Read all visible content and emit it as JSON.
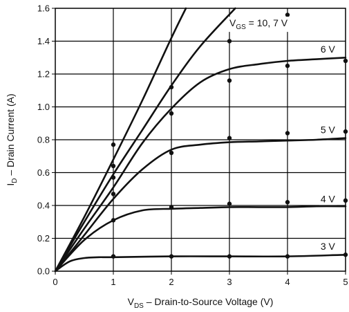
{
  "chart_data": {
    "type": "line",
    "title": "",
    "xlabel": {
      "main": "V",
      "sub": "DS",
      "rest": " – Drain-to-Source Voltage (V)"
    },
    "ylabel": {
      "main": "I",
      "sub": "D",
      "rest": " – Drain Current (A)"
    },
    "xlim": [
      0,
      5
    ],
    "ylim": [
      0,
      1.6
    ],
    "x_ticks": [
      "0",
      "1",
      "2",
      "3",
      "4",
      "5"
    ],
    "y_ticks": [
      "0.0",
      "0.2",
      "0.4",
      "0.6",
      "0.8",
      "1.0",
      "1.2",
      "1.4",
      "1.6"
    ],
    "grid": true,
    "series": [
      {
        "name": "VGS = 10 V",
        "x": [
          0,
          0.5,
          1,
          1.5,
          2,
          2.25
        ],
        "y": [
          0,
          0.33,
          0.68,
          1.04,
          1.42,
          1.6
        ]
      },
      {
        "name": "VGS = 7 V",
        "x": [
          0,
          0.5,
          1,
          1.5,
          2,
          2.5,
          3.1
        ],
        "y": [
          0,
          0.3,
          0.59,
          0.86,
          1.13,
          1.37,
          1.6
        ]
      },
      {
        "name": "VGS = 6 V",
        "x": [
          0,
          0.5,
          1,
          1.5,
          2,
          2.5,
          3,
          3.5,
          4,
          4.5,
          5
        ],
        "y": [
          0,
          0.26,
          0.51,
          0.78,
          0.99,
          1.15,
          1.23,
          1.26,
          1.28,
          1.29,
          1.3
        ]
      },
      {
        "name": "VGS = 5 V",
        "x": [
          0,
          0.5,
          1,
          1.5,
          2,
          2.5,
          3,
          3.5,
          4,
          4.5,
          5
        ],
        "y": [
          0,
          0.22,
          0.44,
          0.62,
          0.74,
          0.77,
          0.785,
          0.79,
          0.795,
          0.8,
          0.81
        ]
      },
      {
        "name": "VGS = 4 V",
        "x": [
          0,
          0.5,
          1,
          1.5,
          2,
          2.5,
          3,
          3.5,
          4,
          4.5,
          5
        ],
        "y": [
          0,
          0.19,
          0.31,
          0.37,
          0.38,
          0.385,
          0.39,
          0.39,
          0.39,
          0.395,
          0.395
        ]
      },
      {
        "name": "VGS = 3 V",
        "x": [
          0,
          0.25,
          0.5,
          0.75,
          1,
          2,
          3,
          4,
          5
        ],
        "y": [
          0,
          0.06,
          0.08,
          0.085,
          0.085,
          0.09,
          0.09,
          0.09,
          0.1
        ]
      }
    ],
    "points": [
      {
        "x": 1,
        "y": 0.77
      },
      {
        "x": 1,
        "y": 0.64
      },
      {
        "x": 1,
        "y": 0.57
      },
      {
        "x": 1,
        "y": 0.47
      },
      {
        "x": 1,
        "y": 0.31
      },
      {
        "x": 1,
        "y": 0.09
      },
      {
        "x": 2,
        "y": 1.12
      },
      {
        "x": 2,
        "y": 0.96
      },
      {
        "x": 2,
        "y": 0.72
      },
      {
        "x": 2,
        "y": 0.39
      },
      {
        "x": 2,
        "y": 0.09
      },
      {
        "x": 3,
        "y": 1.4
      },
      {
        "x": 3,
        "y": 1.16
      },
      {
        "x": 3,
        "y": 0.81
      },
      {
        "x": 3,
        "y": 0.41
      },
      {
        "x": 3,
        "y": 0.09
      },
      {
        "x": 4,
        "y": 1.56
      },
      {
        "x": 4,
        "y": 1.25
      },
      {
        "x": 4,
        "y": 0.84
      },
      {
        "x": 4,
        "y": 0.42
      },
      {
        "x": 4,
        "y": 0.09
      },
      {
        "x": 5,
        "y": 1.28
      },
      {
        "x": 5,
        "y": 0.85
      },
      {
        "x": 5,
        "y": 0.43
      },
      {
        "x": 5,
        "y": 0.1
      }
    ],
    "annotations": [
      {
        "id": "vgs-10-7",
        "main": "V",
        "sub": "GS",
        "rest": " = 10, 7 V",
        "x": 3.0,
        "y": 1.49
      },
      {
        "id": "vgs-6",
        "text": "6 V",
        "x": 4.57,
        "y": 1.33
      },
      {
        "id": "vgs-5",
        "text": "5 V",
        "x": 4.57,
        "y": 0.84
      },
      {
        "id": "vgs-4",
        "text": "4 V",
        "x": 4.57,
        "y": 0.42
      },
      {
        "id": "vgs-3",
        "text": "3 V",
        "x": 4.57,
        "y": 0.13
      }
    ]
  }
}
